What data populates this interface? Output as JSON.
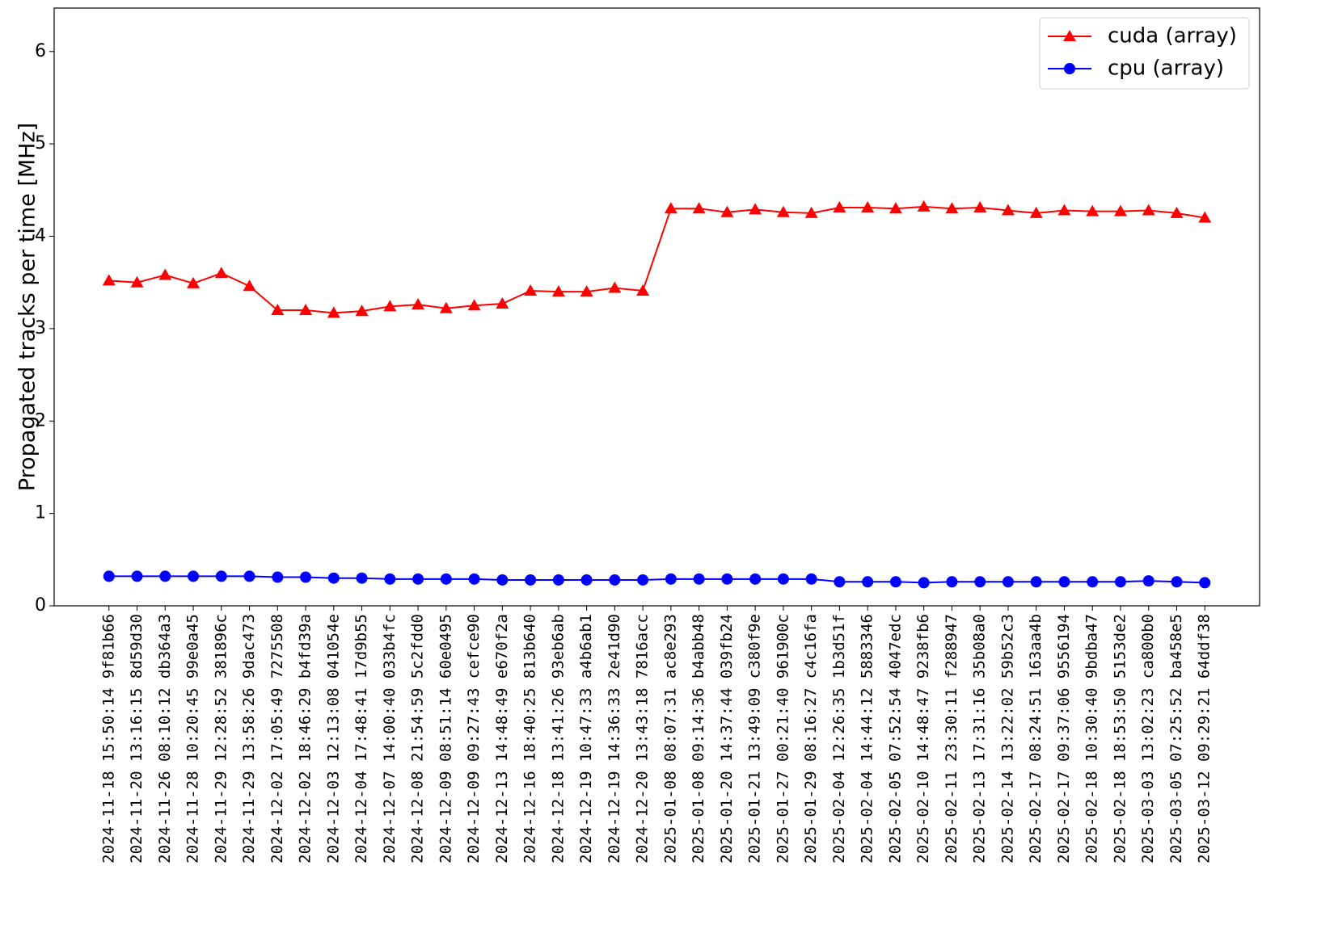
{
  "chart_data": {
    "type": "line",
    "ylabel": "Propagated tracks per time [MHz]",
    "categories": [
      "2024-11-18 15:50:14 9f81b66",
      "2024-11-20 13:16:15 8d59d30",
      "2024-11-26 08:10:12 db364a3",
      "2024-11-28 10:20:45 99e0a45",
      "2024-11-29 12:28:52 381896c",
      "2024-11-29 13:58:26 9dac473",
      "2024-12-02 17:05:49 7275508",
      "2024-12-02 18:46:29 b4fd39a",
      "2024-12-03 12:13:08 041054e",
      "2024-12-04 17:48:41 17d9b55",
      "2024-12-07 14:00:40 033b4fc",
      "2024-12-08 21:54:59 5c2fdd0",
      "2024-12-09 08:51:14 60e0495",
      "2024-12-09 09:27:43 cefce90",
      "2024-12-13 14:48:49 e670f2a",
      "2024-12-16 18:40:25 813b640",
      "2024-12-18 13:41:26 93eb6ab",
      "2024-12-19 10:47:33 a4b6ab1",
      "2024-12-19 14:36:33 2e41d90",
      "2024-12-20 13:43:18 7816acc",
      "2025-01-08 08:07:31 ac8e293",
      "2025-01-08 09:14:36 b4abb48",
      "2025-01-20 14:37:44 039fb24",
      "2025-01-21 13:49:09 c380f9e",
      "2025-01-27 00:21:40 961900c",
      "2025-01-29 08:16:27 c4c16fa",
      "2025-02-04 12:26:35 1b3d51f",
      "2025-02-04 14:44:12 5883346",
      "2025-02-05 07:52:54 4047edc",
      "2025-02-10 14:48:47 9238fb6",
      "2025-02-11 23:30:11 f288947",
      "2025-02-13 17:31:16 35b08a0",
      "2025-02-14 13:22:02 59b52c3",
      "2025-02-17 08:24:51 163aa4b",
      "2025-02-17 09:37:06 9556194",
      "2025-02-18 10:30:40 9bdba47",
      "2025-02-18 18:53:50 5153de2",
      "2025-03-03 13:02:23 ca800b0",
      "2025-03-05 07:25:52 ba458e5",
      "2025-03-12 09:29:21 64ddf38"
    ],
    "series": [
      {
        "name": "cuda (array)",
        "color": "#ff0000",
        "marker": "triangle",
        "values": [
          3.52,
          3.5,
          3.58,
          3.49,
          3.6,
          3.46,
          3.2,
          3.2,
          3.17,
          3.19,
          3.24,
          3.26,
          3.22,
          3.25,
          3.27,
          3.41,
          3.4,
          3.4,
          3.44,
          3.41,
          4.3,
          4.3,
          4.26,
          4.29,
          4.26,
          4.25,
          4.31,
          4.31,
          4.3,
          4.32,
          4.3,
          4.31,
          4.28,
          4.25,
          4.28,
          4.27,
          4.27,
          4.28,
          4.25,
          4.2
        ]
      },
      {
        "name": "cpu (array)",
        "color": "#0000ff",
        "marker": "circle",
        "values": [
          0.32,
          0.32,
          0.32,
          0.32,
          0.32,
          0.32,
          0.31,
          0.31,
          0.3,
          0.3,
          0.29,
          0.29,
          0.29,
          0.29,
          0.28,
          0.28,
          0.28,
          0.28,
          0.28,
          0.28,
          0.29,
          0.29,
          0.29,
          0.29,
          0.29,
          0.29,
          0.26,
          0.26,
          0.26,
          0.25,
          0.26,
          0.26,
          0.26,
          0.26,
          0.26,
          0.26,
          0.26,
          0.27,
          0.26,
          0.25
        ]
      }
    ],
    "ylim": [
      0,
      6.47
    ],
    "yticks": [
      0,
      1,
      2,
      3,
      4,
      5,
      6
    ],
    "legend": "upper right"
  }
}
